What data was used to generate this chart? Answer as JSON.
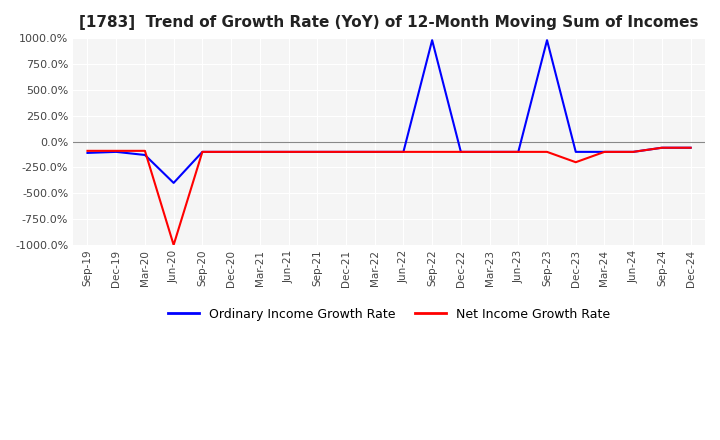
{
  "title": "[1783]  Trend of Growth Rate (YoY) of 12-Month Moving Sum of Incomes",
  "title_fontsize": 11,
  "ylim": [
    -1000,
    1000
  ],
  "yticks": [
    1000,
    750,
    500,
    250,
    0,
    -250,
    -500,
    -750,
    -1000
  ],
  "background_color": "#ffffff",
  "plot_bg_color": "#f5f5f5",
  "grid_color": "#ffffff",
  "ordinary_color": "#0000ff",
  "net_color": "#ff0000",
  "legend_labels": [
    "Ordinary Income Growth Rate",
    "Net Income Growth Rate"
  ],
  "x_labels": [
    "Sep-19",
    "Dec-19",
    "Mar-20",
    "Jun-20",
    "Sep-20",
    "Dec-20",
    "Mar-21",
    "Jun-21",
    "Sep-21",
    "Dec-21",
    "Mar-22",
    "Jun-22",
    "Sep-22",
    "Dec-22",
    "Mar-23",
    "Jun-23",
    "Sep-23",
    "Dec-23",
    "Mar-24",
    "Jun-24",
    "Sep-24",
    "Dec-24"
  ],
  "ordinary_values": [
    -110,
    -100,
    -130,
    -400,
    -100,
    -100,
    -100,
    -100,
    -100,
    -100,
    -100,
    -100,
    980,
    -100,
    -100,
    -100,
    980,
    -100,
    -100,
    -100,
    -60,
    -60
  ],
  "net_values": [
    -90,
    -90,
    -90,
    -1000,
    -100,
    -100,
    -100,
    -100,
    -100,
    -100,
    -100,
    -100,
    -100,
    -100,
    -100,
    -100,
    -100,
    -200,
    -100,
    -100,
    -60,
    -60
  ]
}
